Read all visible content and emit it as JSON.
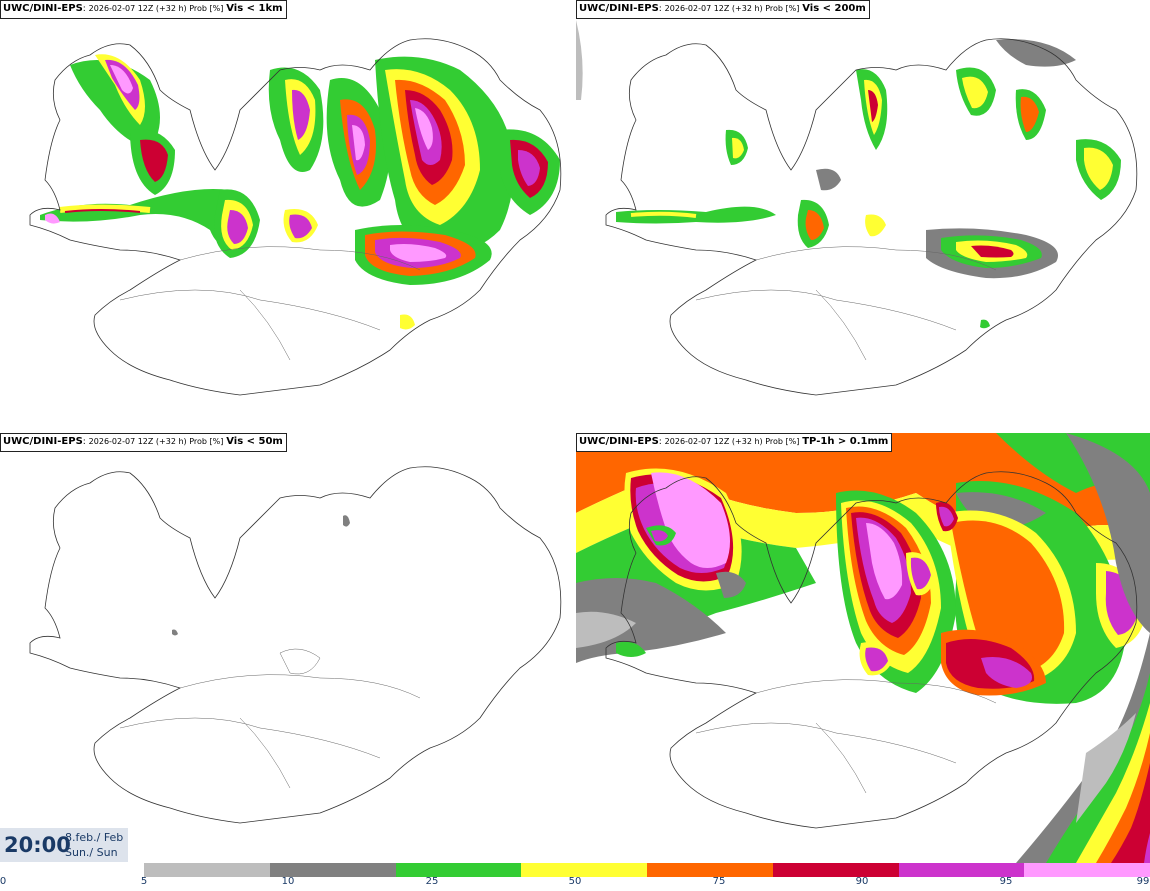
{
  "panels": [
    {
      "source": "UWC/DINI-EPS",
      "run": "2026-02-07 12Z (+32 h) Prob [%]",
      "variable": "Vis < 1km"
    },
    {
      "source": "UWC/DINI-EPS",
      "run": "2026-02-07 12Z (+32 h) Prob [%]",
      "variable": "Vis < 200m"
    },
    {
      "source": "UWC/DINI-EPS",
      "run": "2026-02-07 12Z (+32 h) Prob [%]",
      "variable": "Vis < 50m"
    },
    {
      "source": "UWC/DINI-EPS",
      "run": "2026-02-07 12Z (+32 h) Prob [%]",
      "variable": "TP-1h > 0.1mm"
    }
  ],
  "valid_time": {
    "time": "20:00",
    "date_line1": "8.feb./ Feb",
    "date_line2": "Sun./ Sun"
  },
  "legend": {
    "colors": [
      "#bdbdbd",
      "#808080",
      "#33cc33",
      "#ffff33",
      "#ff6600",
      "#cc0033",
      "#cc33cc",
      "#ff99ff"
    ],
    "ticks": [
      "0",
      "5",
      "10",
      "25",
      "50",
      "75",
      "90",
      "95",
      "99"
    ]
  }
}
